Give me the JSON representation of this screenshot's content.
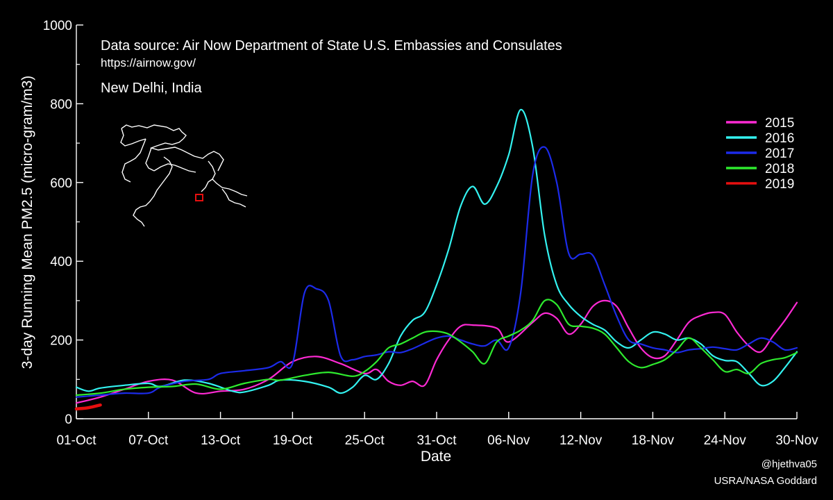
{
  "header": {
    "source": "Data source: Air Now Department of State U.S. Embassies and Consulates",
    "url": "https://airnow.gov/",
    "location": "New Delhi, India"
  },
  "credits": {
    "handle": "@hjethva05",
    "org": "USRA/NASA Goddard"
  },
  "chart_data": {
    "type": "line",
    "xlabel": "Date",
    "ylabel": "3-day Running Mean PM2.5 (micro-gram/m3)",
    "x_range": [
      "01-Oct",
      "30-Nov"
    ],
    "ylim": [
      0,
      1000
    ],
    "x_ticks": [
      "01-Oct",
      "07-Oct",
      "13-Oct",
      "19-Oct",
      "25-Oct",
      "31-Oct",
      "06-Nov",
      "12-Nov",
      "18-Nov",
      "24-Nov",
      "30-Nov"
    ],
    "y_ticks": [
      0,
      200,
      400,
      600,
      800,
      1000
    ],
    "legend_position": "top-right",
    "grid": false,
    "series": [
      {
        "name": "2015",
        "color": "#ff2ad4",
        "points": [
          [
            "01-Oct",
            40
          ],
          [
            "03-Oct",
            55
          ],
          [
            "05-Oct",
            75
          ],
          [
            "07-Oct",
            95
          ],
          [
            "09-Oct",
            98
          ],
          [
            "11-Oct",
            65
          ],
          [
            "13-Oct",
            70
          ],
          [
            "15-Oct",
            75
          ],
          [
            "17-Oct",
            100
          ],
          [
            "19-Oct",
            145
          ],
          [
            "21-Oct",
            158
          ],
          [
            "23-Oct",
            140
          ],
          [
            "25-Oct",
            115
          ],
          [
            "26-Oct",
            125
          ],
          [
            "27-Oct",
            95
          ],
          [
            "28-Oct",
            85
          ],
          [
            "29-Oct",
            95
          ],
          [
            "30-Oct",
            85
          ],
          [
            "31-Oct",
            150
          ],
          [
            "01-Nov",
            200
          ],
          [
            "02-Nov",
            235
          ],
          [
            "03-Nov",
            238
          ],
          [
            "05-Nov",
            230
          ],
          [
            "06-Nov",
            195
          ],
          [
            "08-Nov",
            245
          ],
          [
            "09-Nov",
            268
          ],
          [
            "10-Nov",
            255
          ],
          [
            "11-Nov",
            215
          ],
          [
            "12-Nov",
            240
          ],
          [
            "13-Nov",
            285
          ],
          [
            "14-Nov",
            300
          ],
          [
            "15-Nov",
            285
          ],
          [
            "16-Nov",
            230
          ],
          [
            "17-Nov",
            180
          ],
          [
            "18-Nov",
            155
          ],
          [
            "19-Nov",
            160
          ],
          [
            "20-Nov",
            200
          ],
          [
            "21-Nov",
            245
          ],
          [
            "22-Nov",
            262
          ],
          [
            "23-Nov",
            270
          ],
          [
            "24-Nov",
            265
          ],
          [
            "25-Nov",
            220
          ],
          [
            "26-Nov",
            185
          ],
          [
            "27-Nov",
            170
          ],
          [
            "28-Nov",
            210
          ],
          [
            "29-Nov",
            250
          ],
          [
            "30-Nov",
            295
          ]
        ]
      },
      {
        "name": "2016",
        "color": "#33f2f0",
        "points": [
          [
            "01-Oct",
            80
          ],
          [
            "02-Oct",
            70
          ],
          [
            "03-Oct",
            78
          ],
          [
            "05-Oct",
            85
          ],
          [
            "07-Oct",
            90
          ],
          [
            "08-Oct",
            82
          ],
          [
            "10-Oct",
            98
          ],
          [
            "12-Oct",
            90
          ],
          [
            "14-Oct",
            70
          ],
          [
            "15-Oct",
            68
          ],
          [
            "17-Oct",
            85
          ],
          [
            "18-Oct",
            98
          ],
          [
            "20-Oct",
            95
          ],
          [
            "22-Oct",
            80
          ],
          [
            "23-Oct",
            65
          ],
          [
            "24-Oct",
            80
          ],
          [
            "25-Oct",
            110
          ],
          [
            "26-Oct",
            100
          ],
          [
            "27-Oct",
            140
          ],
          [
            "28-Oct",
            210
          ],
          [
            "29-Oct",
            250
          ],
          [
            "30-Oct",
            270
          ],
          [
            "31-Oct",
            340
          ],
          [
            "01-Nov",
            430
          ],
          [
            "02-Nov",
            540
          ],
          [
            "03-Nov",
            590
          ],
          [
            "04-Nov",
            545
          ],
          [
            "05-Nov",
            590
          ],
          [
            "06-Nov",
            670
          ],
          [
            "07-Nov",
            785
          ],
          [
            "08-Nov",
            690
          ],
          [
            "09-Nov",
            465
          ],
          [
            "10-Nov",
            340
          ],
          [
            "11-Nov",
            290
          ],
          [
            "12-Nov",
            260
          ],
          [
            "13-Nov",
            240
          ],
          [
            "14-Nov",
            225
          ],
          [
            "15-Nov",
            195
          ],
          [
            "16-Nov",
            180
          ],
          [
            "17-Nov",
            200
          ],
          [
            "18-Nov",
            220
          ],
          [
            "19-Nov",
            215
          ],
          [
            "20-Nov",
            200
          ],
          [
            "21-Nov",
            205
          ],
          [
            "22-Nov",
            190
          ],
          [
            "23-Nov",
            160
          ],
          [
            "24-Nov",
            148
          ],
          [
            "25-Nov",
            145
          ],
          [
            "26-Nov",
            115
          ],
          [
            "27-Nov",
            85
          ],
          [
            "28-Nov",
            95
          ],
          [
            "29-Nov",
            130
          ],
          [
            "30-Nov",
            170
          ]
        ]
      },
      {
        "name": "2017",
        "color": "#1c2bea",
        "points": [
          [
            "01-Oct",
            55
          ],
          [
            "03-Oct",
            60
          ],
          [
            "05-Oct",
            65
          ],
          [
            "07-Oct",
            65
          ],
          [
            "08-Oct",
            80
          ],
          [
            "10-Oct",
            95
          ],
          [
            "12-Oct",
            100
          ],
          [
            "13-Oct",
            115
          ],
          [
            "15-Oct",
            122
          ],
          [
            "17-Oct",
            130
          ],
          [
            "18-Oct",
            145
          ],
          [
            "19-Oct",
            140
          ],
          [
            "20-Oct",
            320
          ],
          [
            "21-Oct",
            330
          ],
          [
            "22-Oct",
            300
          ],
          [
            "23-Oct",
            160
          ],
          [
            "24-Oct",
            150
          ],
          [
            "25-Oct",
            158
          ],
          [
            "26-Oct",
            162
          ],
          [
            "27-Oct",
            170
          ],
          [
            "28-Oct",
            168
          ],
          [
            "29-Oct",
            178
          ],
          [
            "30-Oct",
            192
          ],
          [
            "31-Oct",
            205
          ],
          [
            "01-Nov",
            210
          ],
          [
            "02-Nov",
            200
          ],
          [
            "03-Nov",
            190
          ],
          [
            "04-Nov",
            185
          ],
          [
            "05-Nov",
            200
          ],
          [
            "06-Nov",
            180
          ],
          [
            "07-Nov",
            320
          ],
          [
            "08-Nov",
            620
          ],
          [
            "09-Nov",
            690
          ],
          [
            "10-Nov",
            600
          ],
          [
            "11-Nov",
            420
          ],
          [
            "12-Nov",
            418
          ],
          [
            "13-Nov",
            415
          ],
          [
            "14-Nov",
            340
          ],
          [
            "15-Nov",
            260
          ],
          [
            "16-Nov",
            200
          ],
          [
            "17-Nov",
            190
          ],
          [
            "18-Nov",
            180
          ],
          [
            "19-Nov",
            175
          ],
          [
            "20-Nov",
            168
          ],
          [
            "21-Nov",
            175
          ],
          [
            "22-Nov",
            178
          ],
          [
            "23-Nov",
            182
          ],
          [
            "24-Nov",
            178
          ],
          [
            "25-Nov",
            175
          ],
          [
            "26-Nov",
            190
          ],
          [
            "27-Nov",
            205
          ],
          [
            "28-Nov",
            195
          ],
          [
            "29-Nov",
            175
          ],
          [
            "30-Nov",
            180
          ]
        ]
      },
      {
        "name": "2018",
        "color": "#2eea2e",
        "points": [
          [
            "01-Oct",
            60
          ],
          [
            "03-Oct",
            65
          ],
          [
            "05-Oct",
            75
          ],
          [
            "07-Oct",
            80
          ],
          [
            "09-Oct",
            82
          ],
          [
            "11-Oct",
            88
          ],
          [
            "13-Oct",
            75
          ],
          [
            "15-Oct",
            90
          ],
          [
            "17-Oct",
            100
          ],
          [
            "18-Oct",
            98
          ],
          [
            "20-Oct",
            110
          ],
          [
            "22-Oct",
            118
          ],
          [
            "24-Oct",
            108
          ],
          [
            "25-Oct",
            120
          ],
          [
            "26-Oct",
            145
          ],
          [
            "27-Oct",
            180
          ],
          [
            "28-Oct",
            190
          ],
          [
            "29-Oct",
            205
          ],
          [
            "30-Oct",
            220
          ],
          [
            "31-Oct",
            222
          ],
          [
            "01-Nov",
            215
          ],
          [
            "02-Nov",
            195
          ],
          [
            "03-Nov",
            170
          ],
          [
            "04-Nov",
            140
          ],
          [
            "05-Nov",
            195
          ],
          [
            "06-Nov",
            210
          ],
          [
            "07-Nov",
            225
          ],
          [
            "08-Nov",
            250
          ],
          [
            "09-Nov",
            300
          ],
          [
            "10-Nov",
            290
          ],
          [
            "11-Nov",
            240
          ],
          [
            "12-Nov",
            235
          ],
          [
            "13-Nov",
            230
          ],
          [
            "14-Nov",
            215
          ],
          [
            "15-Nov",
            180
          ],
          [
            "16-Nov",
            145
          ],
          [
            "17-Nov",
            130
          ],
          [
            "18-Nov",
            138
          ],
          [
            "19-Nov",
            150
          ],
          [
            "20-Nov",
            175
          ],
          [
            "21-Nov",
            205
          ],
          [
            "22-Nov",
            180
          ],
          [
            "23-Nov",
            150
          ],
          [
            "24-Nov",
            120
          ],
          [
            "25-Nov",
            125
          ],
          [
            "26-Nov",
            115
          ],
          [
            "27-Nov",
            140
          ],
          [
            "28-Nov",
            150
          ],
          [
            "29-Nov",
            155
          ],
          [
            "30-Nov",
            168
          ]
        ]
      },
      {
        "name": "2019",
        "color": "#e60f0f",
        "points": [
          [
            "01-Oct",
            25
          ],
          [
            "02-Oct",
            28
          ],
          [
            "03-Oct",
            35
          ]
        ]
      }
    ]
  }
}
